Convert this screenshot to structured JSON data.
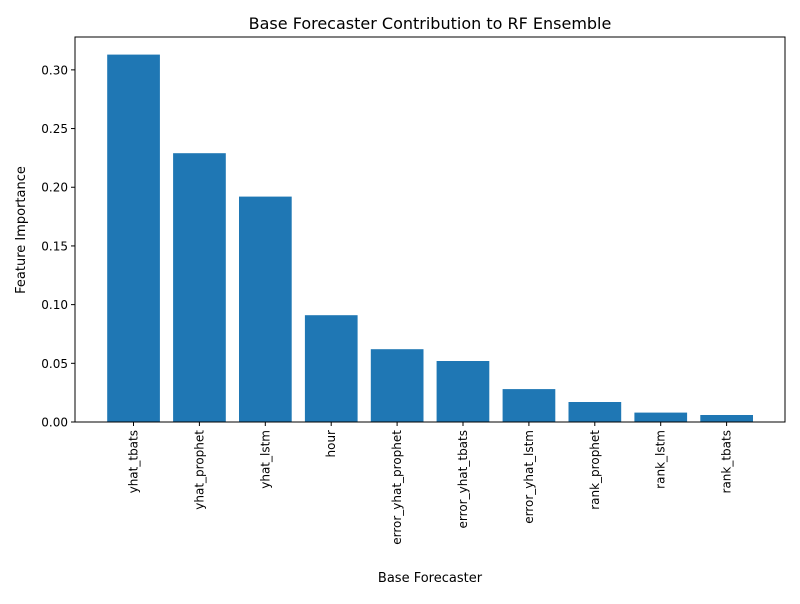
{
  "chart_data": {
    "type": "bar",
    "title": "Base Forecaster Contribution to RF Ensemble",
    "xlabel": "Base Forecaster",
    "ylabel": "Feature Importance",
    "categories": [
      "yhat_tbats",
      "yhat_prophet",
      "yhat_lstm",
      "hour",
      "error_yhat_prophet",
      "error_yhat_tbats",
      "error_yhat_lstm",
      "rank_prophet",
      "rank_lstm",
      "rank_tbats"
    ],
    "values": [
      0.313,
      0.229,
      0.192,
      0.091,
      0.062,
      0.052,
      0.028,
      0.017,
      0.008,
      0.006
    ],
    "ylim": [
      0,
      0.328
    ],
    "yticks": [
      "0.00",
      "0.05",
      "0.10",
      "0.15",
      "0.20",
      "0.25",
      "0.30"
    ],
    "bar_color": "#1f77b4",
    "grid": false,
    "legend": "none"
  }
}
